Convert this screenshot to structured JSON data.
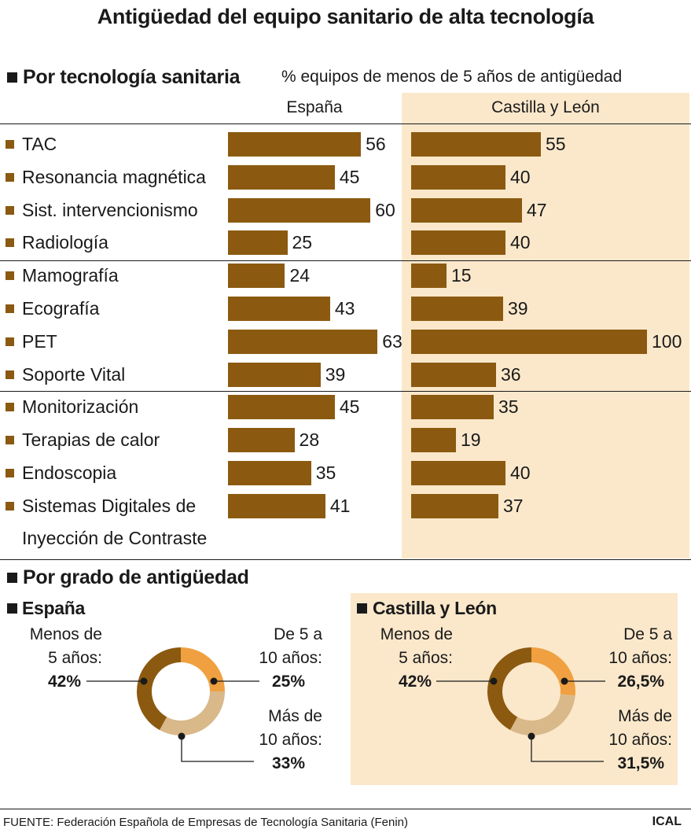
{
  "title": "Antigüedad del equipo sanitario de alta tecnología",
  "section1": {
    "heading": "Por tecnología sanitaria",
    "note": "% equipos de menos de 5 años de antigüedad",
    "col_spain": "España",
    "col_cyl": "Castilla y León"
  },
  "section2": {
    "heading": "Por grado de antigüedad",
    "spain_heading": "España",
    "cyl_heading": "Castilla y León"
  },
  "colors": {
    "bar": "#8b5a10",
    "cyl_background": "#fbe8cb",
    "donut_dark": "#8b5a10",
    "donut_orange": "#f0a040",
    "donut_light": "#d9b98a"
  },
  "chart_data": [
    {
      "type": "bar",
      "orientation": "horizontal",
      "categories": [
        "TAC",
        "Resonancia magnética",
        "Sist. intervencionismo",
        "Radiología",
        "Mamografía",
        "Ecografía",
        "PET",
        "Soporte Vital",
        "Monitorización",
        "Terapias de calor",
        "Endoscopia",
        "Sistemas Digitales de Inyección de Contraste"
      ],
      "category_lines": [
        [
          "TAC"
        ],
        [
          "Resonancia magnética"
        ],
        [
          "Sist. intervencionismo"
        ],
        [
          "Radiología"
        ],
        [
          "Mamografía"
        ],
        [
          "Ecografía"
        ],
        [
          "PET"
        ],
        [
          "Soporte Vital"
        ],
        [
          "Monitorización"
        ],
        [
          "Terapias de calor"
        ],
        [
          "Endoscopia"
        ],
        [
          "Sistemas Digitales de",
          "Inyección de Contraste"
        ]
      ],
      "series": [
        {
          "name": "España",
          "values": [
            56,
            45,
            60,
            25,
            24,
            43,
            63,
            39,
            45,
            28,
            35,
            41
          ]
        },
        {
          "name": "Castilla y León",
          "values": [
            55,
            40,
            47,
            40,
            15,
            39,
            100,
            36,
            35,
            19,
            40,
            37
          ]
        }
      ],
      "xlim": [
        0,
        100
      ],
      "ylabel": "% equipos de menos de 5 años de antigüedad"
    },
    {
      "type": "pie",
      "title": "España",
      "slices": [
        {
          "label": "Menos de 5 años:",
          "value": 42,
          "display": "42%"
        },
        {
          "label": "De 5 a 10 años:",
          "value": 25,
          "display": "25%"
        },
        {
          "label": "Más de 10 años:",
          "value": 33,
          "display": "33%"
        }
      ]
    },
    {
      "type": "pie",
      "title": "Castilla y León",
      "slices": [
        {
          "label": "Menos de 5 años:",
          "value": 42,
          "display": "42%"
        },
        {
          "label": "De 5 a 10 años:",
          "value": 26.5,
          "display": "26,5%"
        },
        {
          "label": "Más de 10 años:",
          "value": 31.5,
          "display": "31,5%"
        }
      ]
    }
  ],
  "donut_labels": {
    "spain": {
      "under5_l1": "Menos de",
      "under5_l2": "5 años:",
      "under5_val": "42%",
      "mid_l1": "De 5 a",
      "mid_l2": "10 años:",
      "mid_val": "25%",
      "over10_l1": "Más de",
      "over10_l2": "10 años:",
      "over10_val": "33%"
    },
    "cyl": {
      "under5_l1": "Menos de",
      "under5_l2": "5 años:",
      "under5_val": "42%",
      "mid_l1": "De 5 a",
      "mid_l2": "10 años:",
      "mid_val": "26,5%",
      "over10_l1": "Más de",
      "over10_l2": "10 años:",
      "over10_val": "31,5%"
    }
  },
  "footer": {
    "source": "FUENTE: Federación Española de Empresas de Tecnología Sanitaria (Fenin)",
    "brand": "ICAL"
  }
}
